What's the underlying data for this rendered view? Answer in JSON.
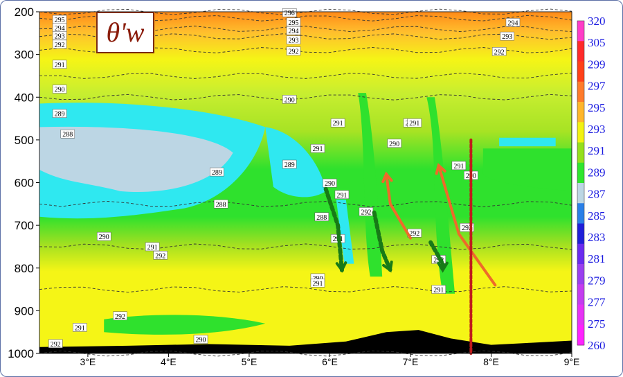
{
  "chart_data": {
    "type": "heatmap",
    "title": "θ'w",
    "xlabel": "",
    "ylabel": "",
    "xlim": [
      2.4,
      9.0
    ],
    "ylim": [
      1000,
      200
    ],
    "x_ticks": [
      {
        "value": 3,
        "label": "3°E"
      },
      {
        "value": 4,
        "label": "4°E"
      },
      {
        "value": 5,
        "label": "5°E"
      },
      {
        "value": 6,
        "label": "6°E"
      },
      {
        "value": 7,
        "label": "7°E"
      },
      {
        "value": 8,
        "label": "8°E"
      },
      {
        "value": 9,
        "label": "9°E"
      }
    ],
    "y_ticks": [
      200,
      300,
      400,
      500,
      600,
      700,
      800,
      900,
      1000
    ],
    "colorbar": {
      "ticks": [
        "260",
        "275",
        "277",
        "279",
        "281",
        "283",
        "285",
        "287",
        "289",
        "291",
        "293",
        "295",
        "297",
        "299",
        "305",
        "320"
      ],
      "colors": [
        "#ff22ff",
        "#e632f5",
        "#c43cf0",
        "#9a3ff0",
        "#6a2bf0",
        "#1f1fd9",
        "#2a7fe8",
        "#bcd6e4",
        "#2ee62e",
        "#95e01c",
        "#f2f212",
        "#ffb62b",
        "#ff7b2b",
        "#ff4019",
        "#ff2a2a",
        "#ff3cc8"
      ]
    },
    "levels": [
      {
        "p": 200,
        "value": 296
      },
      {
        "p": 215,
        "value": 295
      },
      {
        "p": 240,
        "value": 294
      },
      {
        "p": 258,
        "value": 293
      },
      {
        "p": 290,
        "value": 292
      },
      {
        "p": 350,
        "value": 291
      },
      {
        "p": 400,
        "value": 290
      },
      {
        "p": 650,
        "value": 290
      },
      {
        "p": 750,
        "value": 291
      },
      {
        "p": 850,
        "value": 292
      },
      {
        "p": 1000,
        "value": 292
      }
    ],
    "contour_labels": [
      {
        "x": 2.65,
        "p": 218,
        "label": "295"
      },
      {
        "x": 2.65,
        "p": 237,
        "label": "294"
      },
      {
        "x": 2.65,
        "p": 256,
        "label": "293"
      },
      {
        "x": 2.65,
        "p": 276,
        "label": "292"
      },
      {
        "x": 2.65,
        "p": 323,
        "label": "291"
      },
      {
        "x": 2.65,
        "p": 381,
        "label": "290"
      },
      {
        "x": 2.65,
        "p": 438,
        "label": "289"
      },
      {
        "x": 2.75,
        "p": 486,
        "label": "288"
      },
      {
        "x": 5.5,
        "p": 202,
        "label": "296"
      },
      {
        "x": 5.55,
        "p": 224,
        "label": "295"
      },
      {
        "x": 5.55,
        "p": 244,
        "label": "294"
      },
      {
        "x": 5.55,
        "p": 266,
        "label": "293"
      },
      {
        "x": 5.55,
        "p": 292,
        "label": "292"
      },
      {
        "x": 5.5,
        "p": 405,
        "label": "290"
      },
      {
        "x": 8.27,
        "p": 225,
        "label": "294"
      },
      {
        "x": 8.2,
        "p": 257,
        "label": "293"
      },
      {
        "x": 8.1,
        "p": 293,
        "label": "292"
      },
      {
        "x": 4.65,
        "p": 650,
        "label": "288"
      },
      {
        "x": 3.2,
        "p": 726,
        "label": "290"
      },
      {
        "x": 3.8,
        "p": 750,
        "label": "291"
      },
      {
        "x": 3.9,
        "p": 770,
        "label": "292"
      },
      {
        "x": 3.4,
        "p": 912,
        "label": "292"
      },
      {
        "x": 2.9,
        "p": 939,
        "label": "291"
      },
      {
        "x": 2.6,
        "p": 977,
        "label": "292"
      },
      {
        "x": 4.4,
        "p": 967,
        "label": "290"
      },
      {
        "x": 4.6,
        "p": 575,
        "label": "289"
      },
      {
        "x": 5.5,
        "p": 557,
        "label": "289"
      },
      {
        "x": 5.85,
        "p": 520,
        "label": "291"
      },
      {
        "x": 5.9,
        "p": 680,
        "label": "288"
      },
      {
        "x": 6.1,
        "p": 731,
        "label": "291"
      },
      {
        "x": 5.85,
        "p": 823,
        "label": "290"
      },
      {
        "x": 5.85,
        "p": 835,
        "label": "291"
      },
      {
        "x": 6.0,
        "p": 601,
        "label": "290"
      },
      {
        "x": 6.15,
        "p": 628,
        "label": "291"
      },
      {
        "x": 6.1,
        "p": 460,
        "label": "291"
      },
      {
        "x": 6.45,
        "p": 668,
        "label": "292"
      },
      {
        "x": 6.8,
        "p": 508,
        "label": "290"
      },
      {
        "x": 7.0,
        "p": 460,
        "label": "291"
      },
      {
        "x": 7.05,
        "p": 460,
        "label": "291"
      },
      {
        "x": 7.05,
        "p": 718,
        "label": "292"
      },
      {
        "x": 7.35,
        "p": 780,
        "label": "292"
      },
      {
        "x": 7.35,
        "p": 850,
        "label": "291"
      },
      {
        "x": 7.6,
        "p": 560,
        "label": "291"
      },
      {
        "x": 7.75,
        "p": 583,
        "label": "290"
      },
      {
        "x": 7.7,
        "p": 705,
        "label": "292"
      }
    ],
    "annotations": [
      {
        "type": "arrow",
        "color": "#177a17",
        "style": "dotted",
        "points": [
          [
            5.95,
            615
          ],
          [
            6.1,
            700
          ],
          [
            6.15,
            805
          ]
        ]
      },
      {
        "type": "arrow",
        "color": "#177a17",
        "style": "dotted",
        "points": [
          [
            6.55,
            670
          ],
          [
            6.65,
            760
          ],
          [
            6.75,
            805
          ]
        ]
      },
      {
        "type": "arrow",
        "color": "#177a17",
        "style": "dotted",
        "points": [
          [
            7.25,
            740
          ],
          [
            7.4,
            790
          ],
          [
            7.4,
            805
          ]
        ]
      },
      {
        "type": "arrow",
        "color": "#ee6a2a",
        "style": "solid",
        "points": [
          [
            7.0,
            730
          ],
          [
            6.75,
            650
          ],
          [
            6.7,
            580
          ]
        ]
      },
      {
        "type": "arrow",
        "color": "#ee6a2a",
        "style": "solid",
        "points": [
          [
            8.05,
            840
          ],
          [
            7.6,
            720
          ],
          [
            7.35,
            560
          ]
        ]
      },
      {
        "type": "line",
        "color": "#c01b1b",
        "style": "dotted",
        "points": [
          [
            7.75,
            500
          ],
          [
            7.75,
            1000
          ]
        ]
      }
    ]
  }
}
